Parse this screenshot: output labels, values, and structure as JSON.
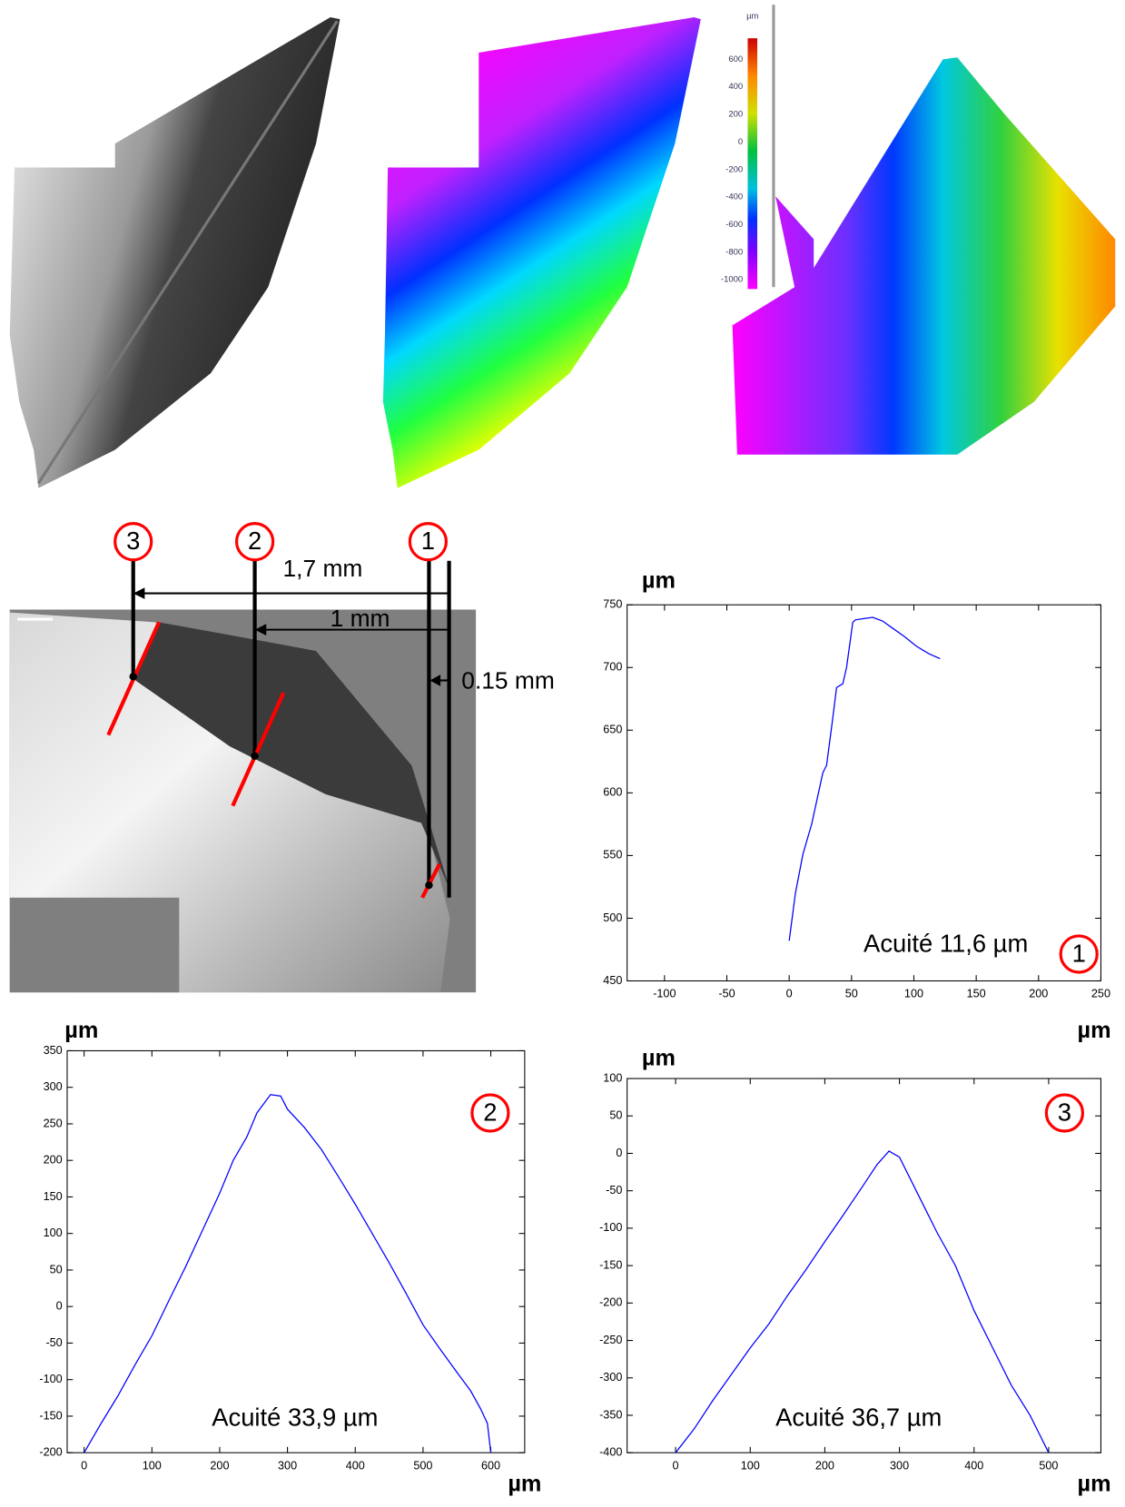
{
  "figure": {
    "colorbar": {
      "unit": "µm",
      "ticks": [
        "600",
        "400",
        "200",
        "0",
        "-200",
        "-400",
        "-600",
        "-800",
        "-1000"
      ]
    },
    "diagram": {
      "markers": [
        "3",
        "2",
        "1"
      ],
      "distances": [
        "1,7 mm",
        "1 mm",
        "0.15 mm"
      ]
    }
  },
  "chart_data": [
    {
      "type": "line",
      "x_label": "µm",
      "y_label": "µm",
      "annotation": "Acuité 11,6 µm",
      "marker": "1",
      "color": "#0000ff",
      "x": [
        0,
        5,
        11,
        18,
        27,
        30,
        35,
        38,
        43,
        46,
        51,
        53,
        60,
        67,
        75,
        82,
        92,
        102,
        112,
        121
      ],
      "values": [
        482,
        520,
        551,
        575,
        616,
        622,
        660,
        684,
        687,
        700,
        736,
        738,
        739,
        740,
        737,
        732,
        725,
        717,
        711,
        707
      ],
      "xlim": [
        -130,
        250
      ],
      "ylim": [
        450,
        750
      ],
      "xticks": [
        -100,
        -50,
        0,
        50,
        100,
        150,
        200,
        250
      ],
      "yticks": [
        450,
        500,
        550,
        600,
        650,
        700,
        750
      ]
    },
    {
      "type": "line",
      "x_label": "µm",
      "y_label": "µm",
      "annotation": "Acuité 33,9 µm",
      "marker": "2",
      "color": "#0000ff",
      "x": [
        0,
        25,
        50,
        75,
        100,
        125,
        150,
        175,
        200,
        220,
        240,
        255,
        275,
        290,
        300,
        325,
        350,
        375,
        400,
        425,
        450,
        475,
        500,
        525,
        550,
        570,
        585,
        595,
        600
      ],
      "values": [
        -200,
        -160,
        -122,
        -80,
        -40,
        8,
        55,
        105,
        155,
        200,
        232,
        265,
        290,
        288,
        270,
        245,
        215,
        178,
        140,
        100,
        60,
        18,
        -25,
        -58,
        -90,
        -115,
        -140,
        -160,
        -200
      ],
      "xlim": [
        -25,
        650
      ],
      "ylim": [
        -200,
        350
      ],
      "xticks": [
        0,
        100,
        200,
        300,
        400,
        500,
        600
      ],
      "yticks": [
        -200,
        -150,
        -100,
        -50,
        0,
        50,
        100,
        150,
        200,
        250,
        300,
        350
      ]
    },
    {
      "type": "line",
      "x_label": "µm",
      "y_label": "µm",
      "annotation": "Acuité 36,7 µm",
      "marker": "3",
      "color": "#0000ff",
      "x": [
        0,
        25,
        50,
        75,
        100,
        125,
        150,
        175,
        200,
        225,
        250,
        270,
        286,
        300,
        325,
        350,
        375,
        400,
        425,
        450,
        475,
        500
      ],
      "values": [
        -400,
        -368,
        -330,
        -295,
        -260,
        -228,
        -190,
        -155,
        -118,
        -82,
        -45,
        -15,
        3,
        -5,
        -55,
        -105,
        -150,
        -210,
        -260,
        -310,
        -350,
        -400
      ],
      "xlim": [
        -65,
        570
      ],
      "ylim": [
        -400,
        100
      ],
      "xticks": [
        0,
        100,
        200,
        300,
        400,
        500
      ],
      "yticks": [
        -400,
        -350,
        -300,
        -250,
        -200,
        -150,
        -100,
        -50,
        0,
        50,
        100
      ]
    }
  ]
}
